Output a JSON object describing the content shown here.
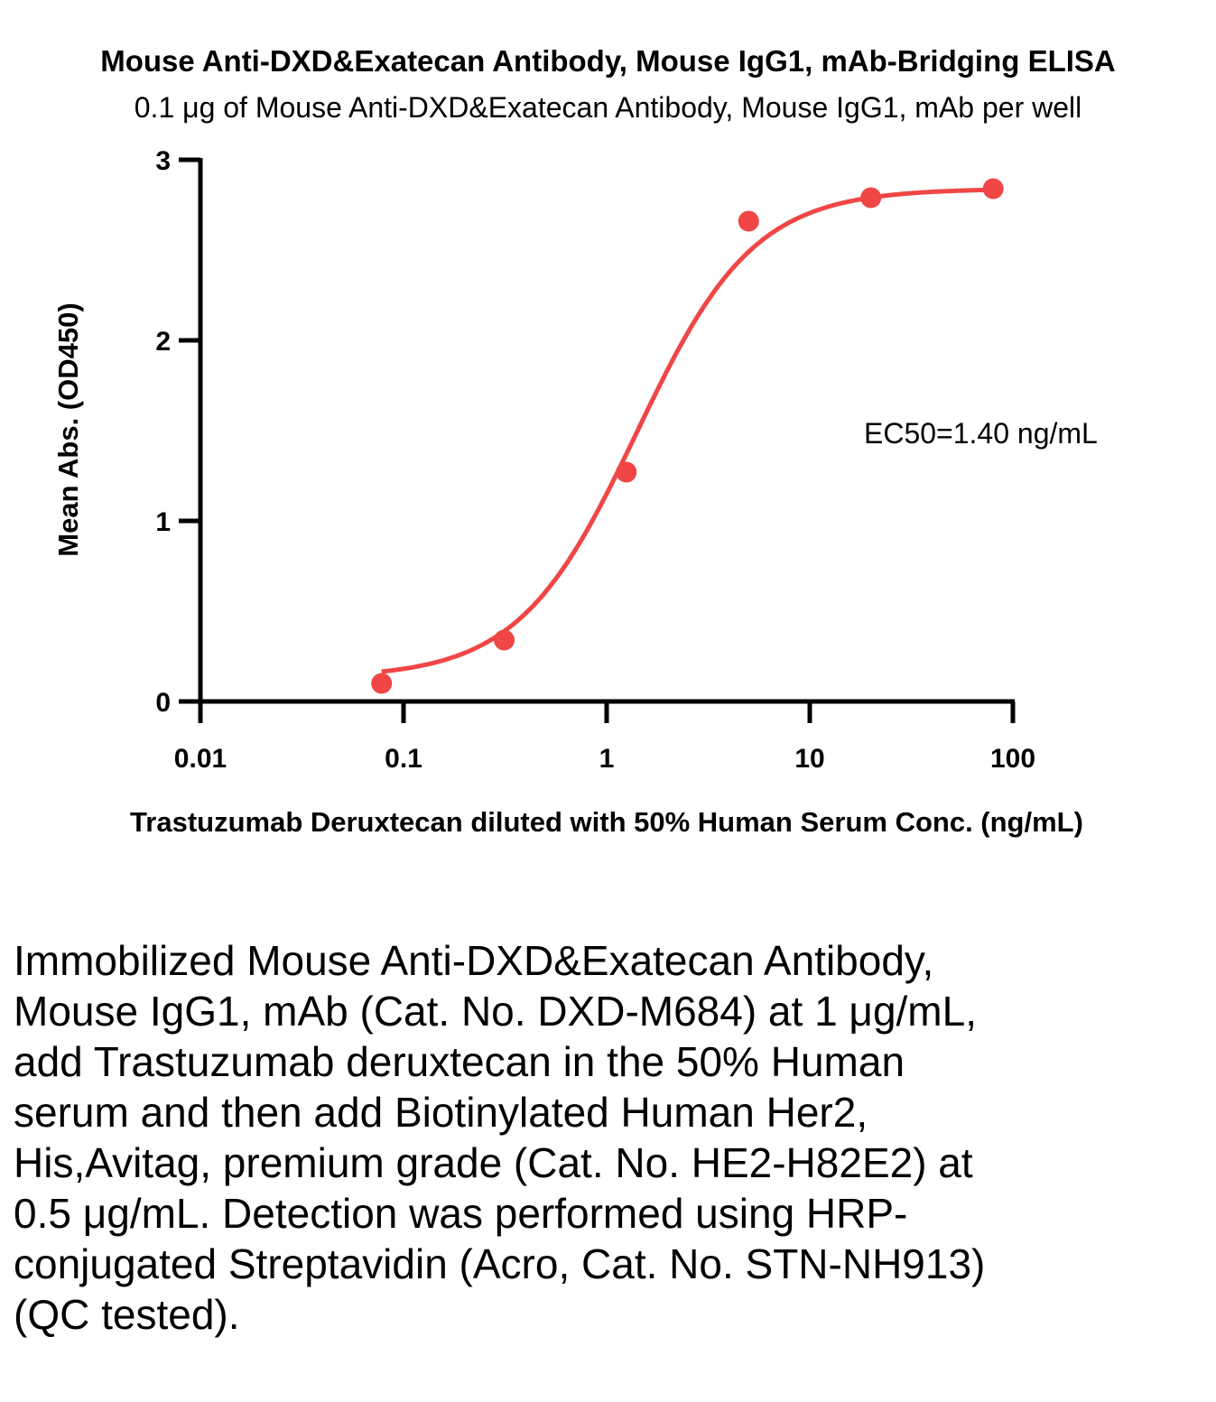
{
  "chart_data": {
    "type": "scatter",
    "title": "Mouse Anti-DXD&Exatecan Antibody, Mouse IgG1, mAb-Bridging ELISA",
    "subtitle": "0.1 μg of Mouse Anti-DXD&Exatecan Antibody, Mouse IgG1, mAb per well",
    "xlabel": "Trastuzumab Deruxtecan diluted with 50% Human Serum Conc. (ng/mL)",
    "ylabel": "Mean Abs. (OD450)",
    "xscale": "log",
    "xlim": [
      0.01,
      100
    ],
    "ylim": [
      0,
      3
    ],
    "xticks": [
      "0.01",
      "0.1",
      "1",
      "10",
      "100"
    ],
    "yticks": [
      "0",
      "1",
      "2",
      "3"
    ],
    "grid": false,
    "series_color": "#f04646",
    "points": [
      {
        "x": 0.078,
        "y": 0.1
      },
      {
        "x": 0.313,
        "y": 0.34
      },
      {
        "x": 1.25,
        "y": 1.27
      },
      {
        "x": 5.0,
        "y": 2.66
      },
      {
        "x": 20.0,
        "y": 2.79
      },
      {
        "x": 80.0,
        "y": 2.84
      }
    ],
    "fit": {
      "model": "4PL",
      "bottom": 0.13,
      "top": 2.84,
      "ec50": 1.4,
      "hill": 1.5,
      "x_range": [
        0.078,
        80
      ]
    },
    "annotation": "EC50=1.40 ng/mL"
  },
  "caption": "Immobilized Mouse Anti-DXD&Exatecan Antibody, Mouse IgG1, mAb (Cat. No. DXD-M684) at 1 μg/mL, add Trastuzumab deruxtecan in the 50% Human serum and then add Biotinylated Human Her2, His,Avitag, premium grade (Cat. No. HE2-H82E2) at 0.5 μg/mL. Detection was performed using HRP-conjugated Streptavidin (Acro, Cat. No. STN-NH913) (QC tested)."
}
